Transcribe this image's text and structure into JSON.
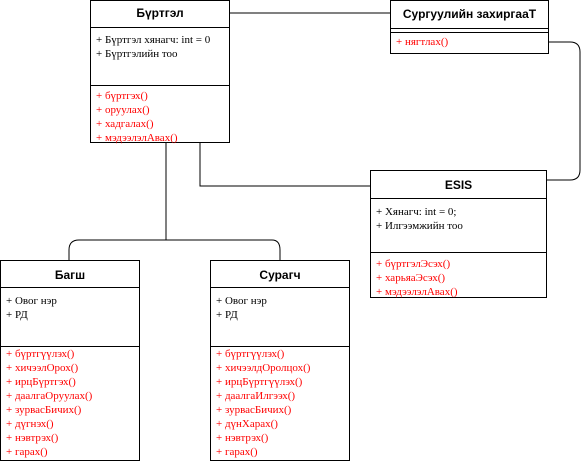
{
  "classes": {
    "burtgel": {
      "name": "Бүртгэл",
      "attrs": [
        "+ Бүртгэл хянагч: int = 0",
        "+ Бүртгэлийн тоо"
      ],
      "methods": [
        "+ бүртгэх()",
        "+ оруулах()",
        "+ хадгалах()",
        "+ мэдээлэлАвах()"
      ]
    },
    "surguuli": {
      "name": "Сургуулийн захиргааТ",
      "attrs": [],
      "methods": [
        "+ нягтлах()"
      ]
    },
    "esis": {
      "name": "ESIS",
      "attrs": [
        "+ Хянагч: int = 0;",
        "+ Илгээмжийн тоо"
      ],
      "methods": [
        "+ бүртгэлЭсэх()",
        "+ харьяаЭсэх()",
        "+ мэдээлэлАвах()"
      ]
    },
    "bagsh": {
      "name": "Багш",
      "attrs": [
        "+ Овог нэр",
        "+ РД"
      ],
      "methods": [
        "+ бүртгүүлэх()",
        "+ хичээлОрох()",
        "+ ирцБүртгэх()",
        "+ даалгаОруулах()",
        "+ зурвасБичих()",
        "+ дүгнэх()",
        "+ нэвтрэх()",
        "+ гарах()"
      ]
    },
    "suragch": {
      "name": "Сурагч",
      "attrs": [
        "+ Овог нэр",
        "+ РД"
      ],
      "methods": [
        "+ бүртгүүлэх()",
        "+ хичээлдОролцох()",
        "+ ирцБүртгүүлэх()",
        "+ даалгаИлгээх()",
        "+ зурвасБичих()",
        "+ дүнХарах()",
        "+ нэвтрэх()",
        "+ гарах()"
      ]
    }
  },
  "colors": {
    "attribute": "#000000",
    "method": "#ff0000",
    "border": "#000000"
  }
}
